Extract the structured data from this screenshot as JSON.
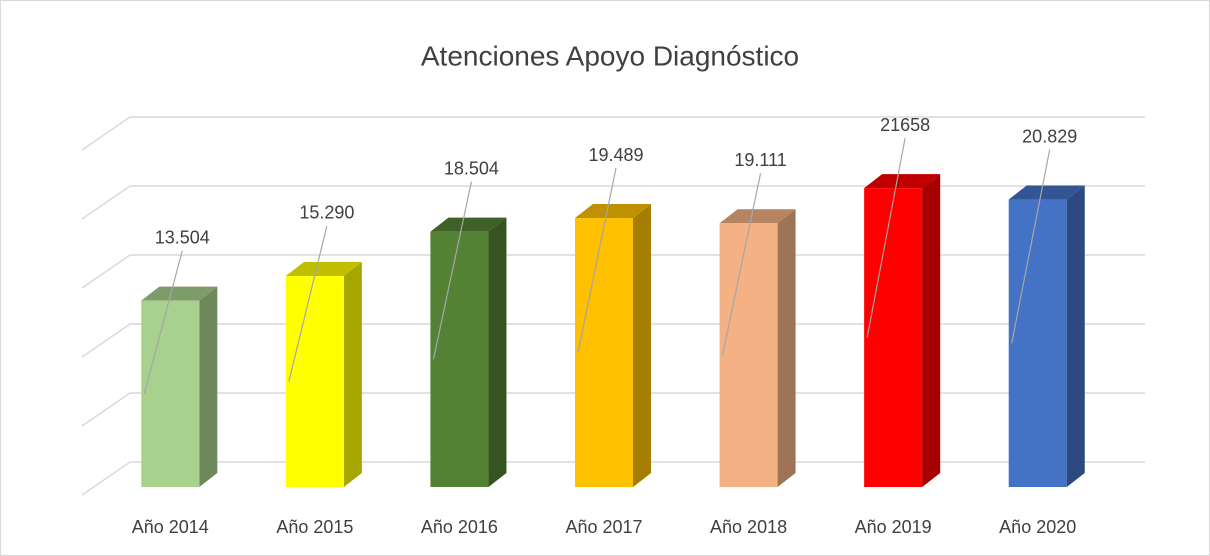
{
  "chart_data": {
    "type": "bar3d",
    "title": "Atenciones Apoyo Diagnóstico",
    "categories": [
      "Año 2014",
      "Año 2015",
      "Año 2016",
      "Año 2017",
      "Año 2018",
      "Año 2019",
      "Año 2020"
    ],
    "values": [
      13504,
      15290,
      18504,
      19489,
      19111,
      21658,
      20829
    ],
    "value_labels": [
      "13.504",
      "15.290",
      "18.504",
      "19.489",
      "19.111",
      "21658",
      "20.829"
    ],
    "colors": [
      "#a9d18e",
      "#ffff00",
      "#548235",
      "#ffc000",
      "#f4b183",
      "#ff0000",
      "#4472c4"
    ],
    "ylim": [
      0,
      25000
    ],
    "yticks": [
      0,
      5000,
      10000,
      15000,
      20000,
      25000
    ],
    "grid": true
  }
}
